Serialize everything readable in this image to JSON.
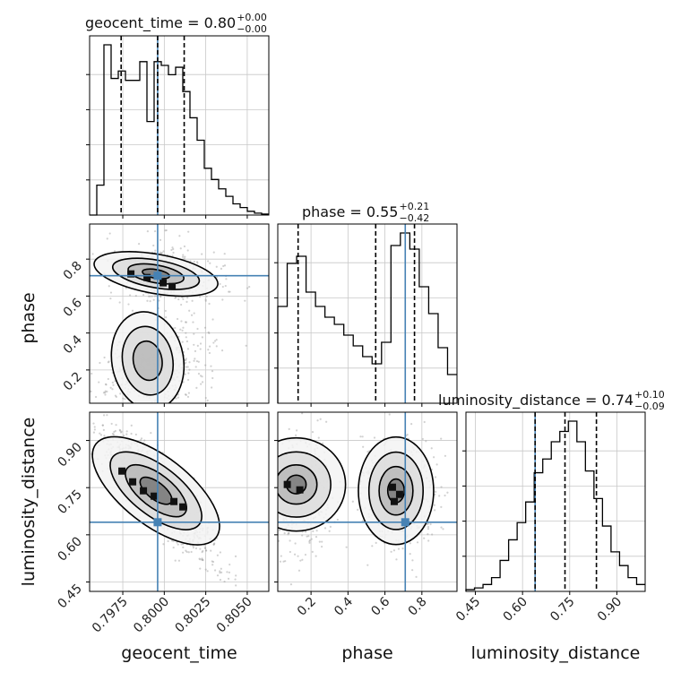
{
  "chart_data": {
    "type": "corner",
    "parameters": [
      {
        "name": "geocent_time",
        "title": {
          "main": "geocent_time = 0.80",
          "sup": "+0.00",
          "sub": "−0.00"
        },
        "range": [
          0.7955,
          0.8063
        ],
        "ticks": [
          0.7975,
          0.8,
          0.8025,
          0.805
        ],
        "tick_labels": [
          "0.7975",
          "0.8000",
          "0.8025",
          "0.8050"
        ],
        "quantiles": [
          0.7974,
          0.7996,
          0.8012
        ],
        "truth": 0.7996,
        "hist": [
          0,
          0.16,
          0.91,
          0.73,
          0.77,
          0.72,
          0.72,
          0.82,
          0.5,
          0.82,
          0.8,
          0.75,
          0.79,
          0.66,
          0.52,
          0.4,
          0.25,
          0.19,
          0.14,
          0.1,
          0.06,
          0.04,
          0.02,
          0.01,
          0.005
        ]
      },
      {
        "name": "phase",
        "title": {
          "main": "phase = 0.55",
          "sup": "+0.21",
          "sub": "−0.42"
        },
        "range": [
          0.02,
          0.99
        ],
        "ticks": [
          0.2,
          0.4,
          0.6,
          0.8
        ],
        "tick_labels": [
          "0.2",
          "0.4",
          "0.6",
          "0.8"
        ],
        "quantiles": [
          0.13,
          0.55,
          0.76
        ],
        "truth": 0.71,
        "hist": [
          0.54,
          0.78,
          0.82,
          0.62,
          0.54,
          0.48,
          0.44,
          0.38,
          0.32,
          0.26,
          0.22,
          0.34,
          0.88,
          0.95,
          0.86,
          0.65,
          0.5,
          0.31,
          0.16
        ]
      },
      {
        "name": "luminosity_distance",
        "title": {
          "main": "luminosity_distance = 0.74",
          "sup": "+0.10",
          "sub": "−0.09"
        },
        "range": [
          0.42,
          0.99
        ],
        "ticks": [
          0.45,
          0.6,
          0.75,
          0.9
        ],
        "tick_labels": [
          "0.45",
          "0.60",
          "0.75",
          "0.90"
        ],
        "quantiles": [
          0.64,
          0.735,
          0.835
        ],
        "truth": 0.64,
        "hist": [
          0.01,
          0.02,
          0.04,
          0.08,
          0.18,
          0.3,
          0.4,
          0.52,
          0.69,
          0.77,
          0.87,
          0.93,
          0.99,
          0.87,
          0.7,
          0.54,
          0.38,
          0.23,
          0.15,
          0.08,
          0.04
        ]
      }
    ],
    "axis_labels": [
      "geocent_time",
      "phase",
      "luminosity_distance"
    ],
    "grid": true,
    "truth_color": "#4682b4",
    "line_color": "#000000"
  }
}
